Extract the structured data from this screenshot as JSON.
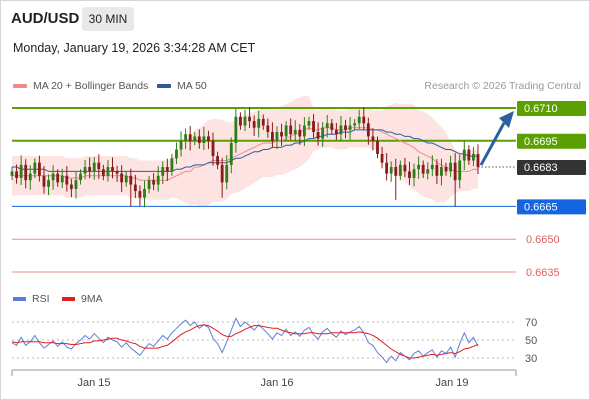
{
  "header": {
    "symbol": "AUD/USD",
    "timeframe": "30 MIN",
    "datetime": "Monday, January 19, 2026 3:34:28 AM CET",
    "credit": "Research © 2026 Trading Central"
  },
  "legend": {
    "ma20_label": "MA 20 + Bollinger Bands",
    "ma20_color": "#f08a8a",
    "ma50_label": "MA 50",
    "ma50_color": "#2f5b9a"
  },
  "rsi_legend": {
    "rsi_label": "RSI",
    "rsi_color": "#5b7fd6",
    "ma_label": "9MA",
    "ma_color": "#e02020"
  },
  "colors": {
    "bull": "#2e7d1a",
    "bear": "#8b1a1a",
    "resistance": "#5aa000",
    "support": "#1565e0",
    "minor": "#e06060",
    "current": "#333333",
    "arrow": "#2a5fa0",
    "bb_fill": "#fde0de"
  },
  "chart_data": [
    {
      "type": "candlestick",
      "ylim": [
        0.6628,
        0.6722
      ],
      "x_ticks": [
        "Jan 15",
        "Jan 16",
        "Jan 19"
      ],
      "price_levels": [
        {
          "value": 0.671,
          "label": "0.6710",
          "kind": "resistance"
        },
        {
          "value": 0.6695,
          "label": "0.6695",
          "kind": "resistance"
        },
        {
          "value": 0.6683,
          "label": "0.6683",
          "kind": "current"
        },
        {
          "value": 0.6665,
          "label": "0.6665",
          "kind": "support"
        },
        {
          "value": 0.665,
          "label": "0.6650",
          "kind": "minor"
        },
        {
          "value": 0.6635,
          "label": "0.6635",
          "kind": "minor"
        }
      ],
      "closes": [
        0.6681,
        0.6678,
        0.6684,
        0.6677,
        0.668,
        0.6685,
        0.6679,
        0.6674,
        0.6677,
        0.668,
        0.6676,
        0.6679,
        0.6675,
        0.6673,
        0.6677,
        0.668,
        0.6683,
        0.6681,
        0.6685,
        0.6682,
        0.6679,
        0.6683,
        0.6681,
        0.668,
        0.6676,
        0.6679,
        0.6675,
        0.6672,
        0.6669,
        0.6673,
        0.6677,
        0.6675,
        0.6679,
        0.6683,
        0.6681,
        0.6687,
        0.6691,
        0.6695,
        0.6698,
        0.6695,
        0.6697,
        0.6694,
        0.6697,
        0.6695,
        0.6688,
        0.6684,
        0.6676,
        0.6684,
        0.6694,
        0.6706,
        0.6702,
        0.6706,
        0.6704,
        0.6701,
        0.6705,
        0.6702,
        0.6699,
        0.6695,
        0.6699,
        0.6697,
        0.6702,
        0.6698,
        0.67,
        0.6697,
        0.6702,
        0.6704,
        0.6699,
        0.6696,
        0.6701,
        0.6703,
        0.67,
        0.6698,
        0.6702,
        0.67,
        0.6702,
        0.6703,
        0.6706,
        0.6703,
        0.6697,
        0.6695,
        0.6689,
        0.6685,
        0.668,
        0.6683,
        0.6679,
        0.6684,
        0.6681,
        0.6678,
        0.6682,
        0.6684,
        0.668,
        0.6682,
        0.6684,
        0.6679,
        0.6683,
        0.6681,
        0.6685,
        0.6677,
        0.6686,
        0.6691,
        0.6686,
        0.6689,
        0.6683
      ],
      "ma20": [
        0.6679,
        0.6679,
        0.6679,
        0.6679,
        0.6679,
        0.6679,
        0.6679,
        0.6679,
        0.6679,
        0.6679,
        0.6679,
        0.6679,
        0.6678,
        0.6678,
        0.6678,
        0.6678,
        0.6679,
        0.6679,
        0.6679,
        0.6679,
        0.6679,
        0.6679,
        0.6679,
        0.6679,
        0.6679,
        0.6679,
        0.6678,
        0.6678,
        0.6677,
        0.6677,
        0.6677,
        0.6677,
        0.6677,
        0.6677,
        0.6677,
        0.6678,
        0.6679,
        0.668,
        0.6681,
        0.6681,
        0.6683,
        0.6683,
        0.6684,
        0.6685,
        0.6686,
        0.6686,
        0.6686,
        0.6686,
        0.6687,
        0.6688,
        0.6689,
        0.669,
        0.6691,
        0.6692,
        0.6693,
        0.6694,
        0.6694,
        0.6694,
        0.6695,
        0.6695,
        0.6696,
        0.6697,
        0.6698,
        0.6699,
        0.67,
        0.6701,
        0.67,
        0.67,
        0.6701,
        0.6701,
        0.6701,
        0.67,
        0.67,
        0.67,
        0.6701,
        0.6701,
        0.6701,
        0.6701,
        0.6701,
        0.67,
        0.67,
        0.6699,
        0.6698,
        0.6697,
        0.6696,
        0.6695,
        0.6694,
        0.6693,
        0.6692,
        0.669,
        0.6689,
        0.6688,
        0.6687,
        0.6685,
        0.6684,
        0.6683,
        0.6682,
        0.6681,
        0.6681,
        0.6681,
        0.6681,
        0.6682,
        0.6682
      ],
      "ma50": [
        0.6683,
        0.6683,
        0.6682,
        0.6682,
        0.6682,
        0.6682,
        0.6682,
        0.6682,
        0.6681,
        0.6681,
        0.6681,
        0.6681,
        0.6681,
        0.6681,
        0.6681,
        0.6681,
        0.6681,
        0.6681,
        0.6681,
        0.6681,
        0.6681,
        0.6681,
        0.6681,
        0.6681,
        0.6681,
        0.6681,
        0.6681,
        0.6681,
        0.6681,
        0.6681,
        0.6681,
        0.6681,
        0.6681,
        0.6681,
        0.6681,
        0.6681,
        0.6682,
        0.6682,
        0.6683,
        0.6683,
        0.6684,
        0.6684,
        0.6684,
        0.6685,
        0.6685,
        0.6685,
        0.6685,
        0.6685,
        0.6686,
        0.6687,
        0.6687,
        0.6688,
        0.6689,
        0.669,
        0.669,
        0.6691,
        0.6691,
        0.6692,
        0.6692,
        0.6692,
        0.6693,
        0.6693,
        0.6694,
        0.6694,
        0.6695,
        0.6696,
        0.6696,
        0.6697,
        0.6697,
        0.6698,
        0.6698,
        0.6698,
        0.6699,
        0.6699,
        0.6699,
        0.67,
        0.67,
        0.67,
        0.67,
        0.67,
        0.67,
        0.67,
        0.6699,
        0.6699,
        0.6698,
        0.6698,
        0.6697,
        0.6697,
        0.6696,
        0.6696,
        0.6695,
        0.6694,
        0.6694,
        0.6693,
        0.6692,
        0.6691,
        0.6691,
        0.669,
        0.6689,
        0.6689,
        0.6688,
        0.6688,
        0.6688
      ]
    },
    {
      "type": "line",
      "name": "RSI",
      "ylim": [
        22,
        78
      ],
      "y_ticks": [
        70,
        50,
        30
      ],
      "rsi": [
        47,
        44,
        53,
        44,
        48,
        55,
        47,
        41,
        45,
        49,
        43,
        48,
        42,
        40,
        46,
        50,
        55,
        51,
        57,
        52,
        47,
        53,
        50,
        48,
        42,
        47,
        41,
        37,
        33,
        40,
        46,
        43,
        49,
        55,
        51,
        58,
        63,
        68,
        72,
        66,
        70,
        63,
        67,
        64,
        52,
        46,
        36,
        48,
        61,
        74,
        65,
        70,
        66,
        61,
        67,
        62,
        57,
        51,
        58,
        55,
        62,
        55,
        59,
        54,
        61,
        64,
        56,
        51,
        59,
        63,
        57,
        53,
        60,
        56,
        59,
        61,
        65,
        58,
        47,
        44,
        36,
        31,
        25,
        32,
        27,
        36,
        32,
        28,
        35,
        38,
        32,
        36,
        39,
        31,
        38,
        35,
        42,
        31,
        46,
        58,
        47,
        53,
        43
      ],
      "ma9": [
        48,
        47,
        48,
        48,
        48,
        48,
        48,
        47,
        47,
        47,
        46,
        46,
        46,
        45,
        45,
        46,
        47,
        47,
        49,
        49,
        50,
        51,
        52,
        52,
        50,
        49,
        47,
        46,
        43,
        41,
        41,
        41,
        41,
        43,
        44,
        48,
        52,
        56,
        59,
        61,
        64,
        66,
        67,
        66,
        63,
        60,
        56,
        54,
        54,
        57,
        59,
        62,
        64,
        66,
        66,
        65,
        64,
        63,
        63,
        61,
        59,
        58,
        57,
        57,
        57,
        58,
        58,
        57,
        57,
        57,
        58,
        58,
        58,
        58,
        58,
        58,
        59,
        58,
        57,
        55,
        52,
        48,
        44,
        40,
        37,
        34,
        32,
        30,
        30,
        31,
        32,
        33,
        34,
        33,
        34,
        35,
        36,
        35,
        37,
        40,
        41,
        43,
        45
      ]
    }
  ]
}
